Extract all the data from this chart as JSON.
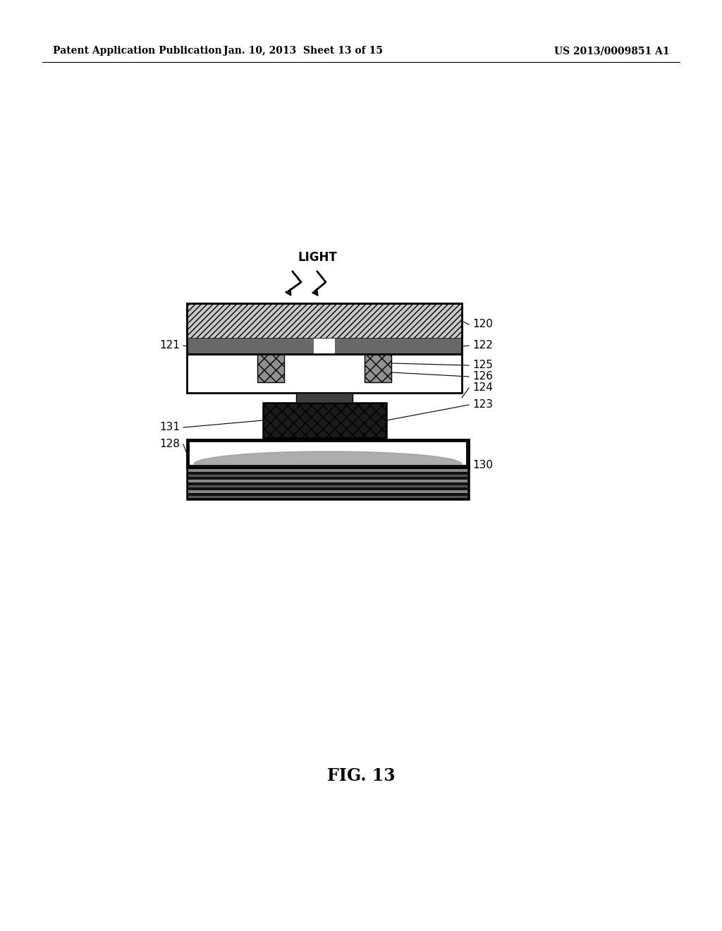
{
  "bg_color": "#ffffff",
  "header_left": "Patent Application Publication",
  "header_mid": "Jan. 10, 2013  Sheet 13 of 15",
  "header_right": "US 2013/0009851 A1",
  "fig_label": "FIG. 13"
}
